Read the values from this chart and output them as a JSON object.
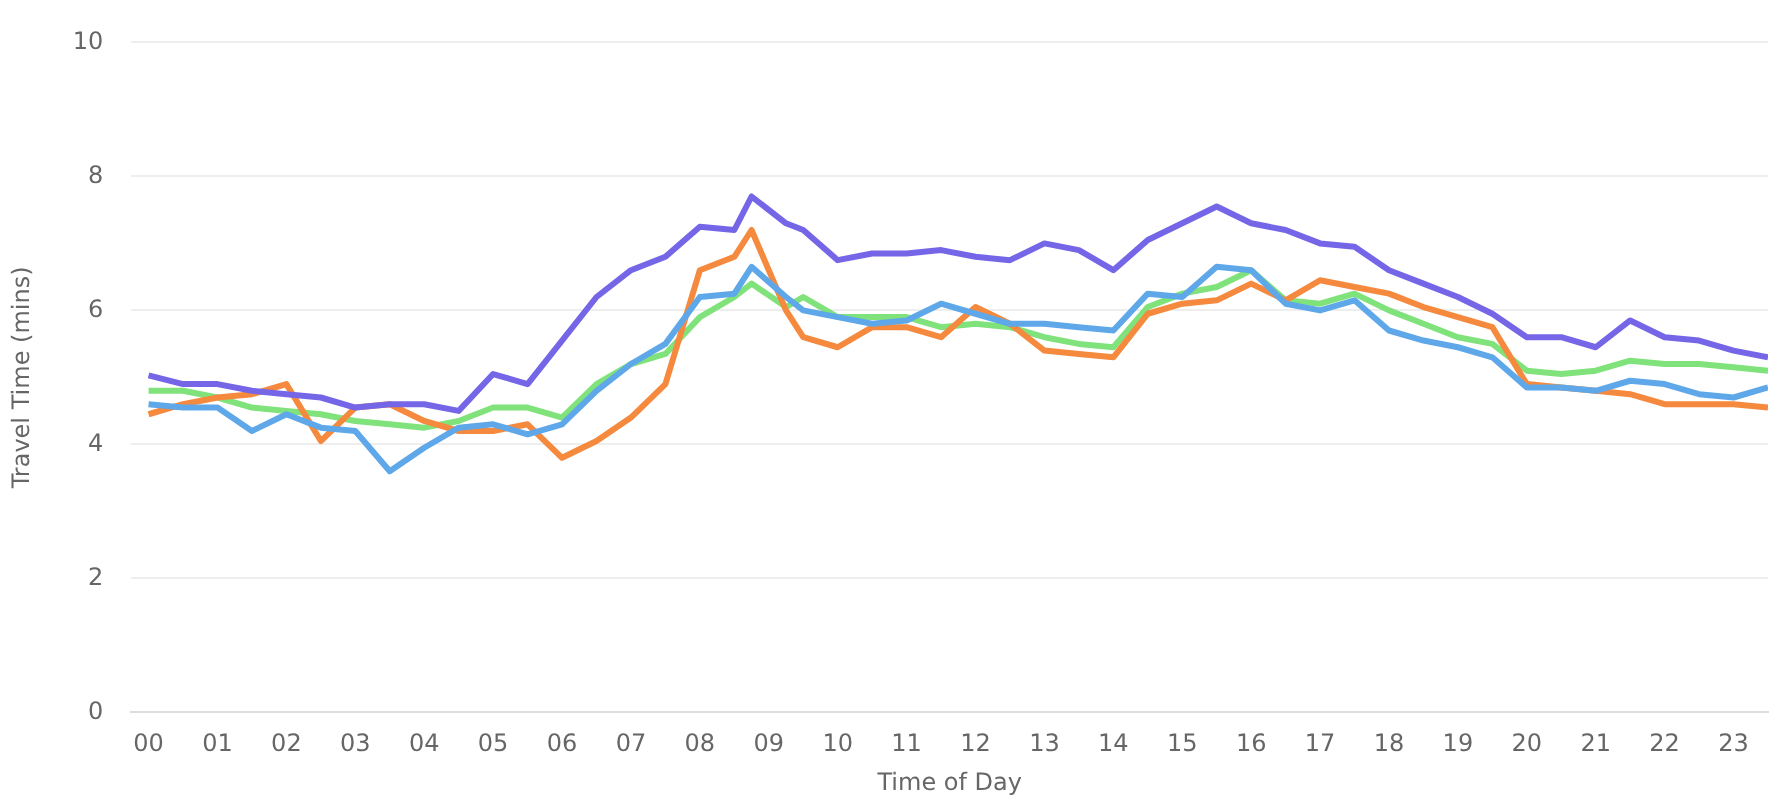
{
  "chart_data": {
    "type": "line",
    "xlabel": "Time of Day",
    "ylabel": "Travel Time (mins)",
    "x": [
      0,
      0.5,
      1,
      1.5,
      2,
      2.5,
      3,
      3.5,
      4,
      4.5,
      5,
      5.5,
      6,
      6.5,
      7,
      7.5,
      8,
      8.5,
      8.75,
      9.25,
      9.5,
      10,
      10.5,
      11,
      11.5,
      12,
      12.5,
      13,
      13.5,
      14,
      14.5,
      15,
      15.5,
      16,
      16.5,
      17,
      17.5,
      18,
      18.5,
      19,
      19.5,
      20,
      20.5,
      21,
      21.5,
      22,
      22.5,
      23,
      23.5
    ],
    "series": [
      {
        "color": "#7466e6",
        "values": [
          5.03,
          4.9,
          4.9,
          4.8,
          4.75,
          4.7,
          4.55,
          4.6,
          4.6,
          4.5,
          5.05,
          4.9,
          5.55,
          6.2,
          6.6,
          6.8,
          7.25,
          7.2,
          7.7,
          7.3,
          7.2,
          6.75,
          6.85,
          6.85,
          6.9,
          6.8,
          6.75,
          7.0,
          6.9,
          6.6,
          7.05,
          7.3,
          7.55,
          7.3,
          7.2,
          7.0,
          6.95,
          6.6,
          6.4,
          6.2,
          5.95,
          5.6,
          5.6,
          5.45,
          5.85,
          5.6,
          5.55,
          5.4,
          5.3
        ]
      },
      {
        "color": "#5ea8ea",
        "values": [
          4.6,
          4.55,
          4.55,
          4.2,
          4.45,
          4.25,
          4.2,
          3.6,
          3.95,
          4.25,
          4.3,
          4.15,
          4.3,
          4.8,
          5.2,
          5.5,
          6.2,
          6.25,
          6.65,
          6.2,
          6.0,
          5.9,
          5.8,
          5.85,
          6.1,
          5.95,
          5.8,
          5.8,
          5.75,
          5.7,
          6.25,
          6.2,
          6.65,
          6.6,
          6.1,
          6.0,
          6.15,
          5.7,
          5.55,
          5.45,
          5.3,
          4.85,
          4.85,
          4.8,
          4.95,
          4.9,
          4.75,
          4.7,
          4.85
        ]
      },
      {
        "color": "#f5893e",
        "values": [
          4.45,
          4.6,
          4.7,
          4.75,
          4.9,
          4.05,
          4.55,
          4.6,
          4.35,
          4.2,
          4.2,
          4.3,
          3.8,
          4.05,
          4.4,
          4.9,
          6.6,
          6.8,
          7.2,
          6.0,
          5.6,
          5.45,
          5.75,
          5.75,
          5.6,
          6.05,
          5.8,
          5.4,
          5.35,
          5.3,
          5.95,
          6.1,
          6.15,
          6.4,
          6.15,
          6.45,
          6.35,
          6.25,
          6.05,
          5.9,
          5.75,
          4.9,
          4.85,
          4.8,
          4.75,
          4.6,
          4.6,
          4.6,
          4.55
        ]
      },
      {
        "color": "#80e27a",
        "values": [
          4.8,
          4.8,
          4.7,
          4.55,
          4.5,
          4.45,
          4.35,
          4.3,
          4.25,
          4.35,
          4.55,
          4.55,
          4.4,
          4.9,
          5.2,
          5.35,
          5.9,
          6.2,
          6.4,
          6.05,
          6.2,
          5.9,
          5.9,
          5.9,
          5.75,
          5.8,
          5.75,
          5.6,
          5.5,
          5.45,
          6.05,
          6.25,
          6.35,
          6.6,
          6.15,
          6.1,
          6.25,
          6.0,
          5.8,
          5.6,
          5.5,
          5.1,
          5.05,
          5.1,
          5.25,
          5.2,
          5.2,
          5.15,
          5.1
        ]
      }
    ],
    "xlim": [
      -0.25,
      23.5
    ],
    "xticks": [
      {
        "value": 0,
        "label": "00"
      },
      {
        "value": 1,
        "label": "01"
      },
      {
        "value": 2,
        "label": "02"
      },
      {
        "value": 3,
        "label": "03"
      },
      {
        "value": 4,
        "label": "04"
      },
      {
        "value": 5,
        "label": "05"
      },
      {
        "value": 6,
        "label": "06"
      },
      {
        "value": 7,
        "label": "07"
      },
      {
        "value": 8,
        "label": "08"
      },
      {
        "value": 9,
        "label": "09"
      },
      {
        "value": 10,
        "label": "10"
      },
      {
        "value": 11,
        "label": "11"
      },
      {
        "value": 12,
        "label": "12"
      },
      {
        "value": 13,
        "label": "13"
      },
      {
        "value": 14,
        "label": "14"
      },
      {
        "value": 15,
        "label": "15"
      },
      {
        "value": 16,
        "label": "16"
      },
      {
        "value": 17,
        "label": "17"
      },
      {
        "value": 18,
        "label": "18"
      },
      {
        "value": 19,
        "label": "19"
      },
      {
        "value": 20,
        "label": "20"
      },
      {
        "value": 21,
        "label": "21"
      },
      {
        "value": 22,
        "label": "22"
      },
      {
        "value": 23,
        "label": "23"
      }
    ],
    "ylim": [
      0,
      10
    ],
    "yticks": [
      0,
      2,
      4,
      6,
      8,
      10
    ],
    "grid": "y",
    "legend": false,
    "marker": "none",
    "line_style": "solid"
  }
}
